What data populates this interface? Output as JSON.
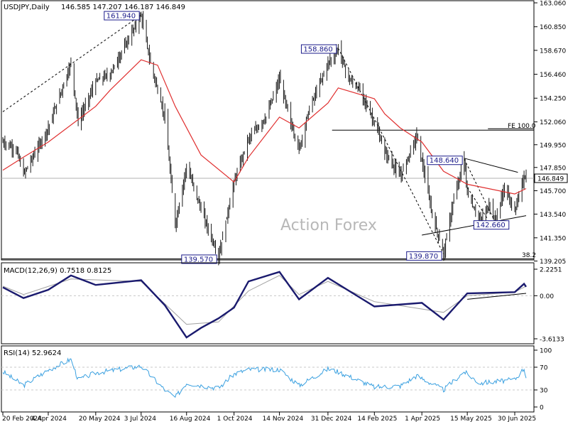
{
  "header": {
    "symbol": "USDJPY,Daily",
    "quote": "146.585 147.207 146.187 146.849"
  },
  "watermark": "Action Forex",
  "colors": {
    "candle": "#1a1a1a",
    "ma": "#e03030",
    "macd": "#1a1a6e",
    "signal": "#a0a0a0",
    "rsi": "#3aa0e0",
    "label_box": "#1a1a8a",
    "grid": "#c8c8c8"
  },
  "chart_data": [
    {
      "type": "candlestick",
      "panel": "price",
      "title": "USDJPY,Daily",
      "ylim": [
        139.5,
        163.06
      ],
      "y_ticks": [
        "163.060",
        "160.850",
        "158.670",
        "156.460",
        "154.250",
        "152.060",
        "149.950",
        "147.850",
        "145.700",
        "143.540",
        "141.350",
        "139.205"
      ],
      "current_price": "146.849",
      "x_labels": [
        "20 Feb 2024",
        "4 Apr 2024",
        "20 May 2024",
        "3 Jul 2024",
        "16 Aug 2024",
        "1 Oct 2024",
        "14 Nov 2024",
        "31 Dec 2024",
        "14 Feb 2025",
        "1 Apr 2025",
        "15 May 2025",
        "30 Jun 2025"
      ],
      "price_path": [
        {
          "x": "20 Feb 2024",
          "y": 150.2
        },
        {
          "x": "4 Mar 2024",
          "y": 149.5
        },
        {
          "x": "11 Mar 2024",
          "y": 147.2
        },
        {
          "x": "4 Apr 2024",
          "y": 151.5
        },
        {
          "x": "26 Apr 2024",
          "y": 157.5
        },
        {
          "x": "3 May 2024",
          "y": 152.0
        },
        {
          "x": "20 May 2024",
          "y": 155.8
        },
        {
          "x": "3 Jun 2024",
          "y": 156.5
        },
        {
          "x": "3 Jul 2024",
          "y": 161.94
        },
        {
          "x": "12 Jul 2024",
          "y": 157.5
        },
        {
          "x": "26 Jul 2024",
          "y": 152.5
        },
        {
          "x": "5 Aug 2024",
          "y": 142.5
        },
        {
          "x": "16 Aug 2024",
          "y": 148.0
        },
        {
          "x": "30 Aug 2024",
          "y": 144.0
        },
        {
          "x": "16 Sep 2024",
          "y": 139.57
        },
        {
          "x": "1 Oct 2024",
          "y": 146.5
        },
        {
          "x": "15 Oct 2024",
          "y": 150.5
        },
        {
          "x": "1 Nov 2024",
          "y": 152.5
        },
        {
          "x": "14 Nov 2024",
          "y": 156.0
        },
        {
          "x": "25 Nov 2024",
          "y": 152.0
        },
        {
          "x": "3 Dec 2024",
          "y": 149.5
        },
        {
          "x": "12 Dec 2024",
          "y": 153.0
        },
        {
          "x": "31 Dec 2024",
          "y": 157.5
        },
        {
          "x": "10 Jan 2025",
          "y": 158.86
        },
        {
          "x": "20 Jan 2025",
          "y": 156.0
        },
        {
          "x": "31 Jan 2025",
          "y": 155.0
        },
        {
          "x": "14 Feb 2025",
          "y": 152.0
        },
        {
          "x": "24 Feb 2025",
          "y": 149.3
        },
        {
          "x": "11 Mar 2025",
          "y": 147.0
        },
        {
          "x": "27 Mar 2025",
          "y": 150.8
        },
        {
          "x": "1 Apr 2025",
          "y": 148.5
        },
        {
          "x": "11 Apr 2025",
          "y": 143.5
        },
        {
          "x": "22 Apr 2025",
          "y": 139.87
        },
        {
          "x": "1 May 2025",
          "y": 144.5
        },
        {
          "x": "12 May 2025",
          "y": 148.64
        },
        {
          "x": "15 May 2025",
          "y": 145.5
        },
        {
          "x": "27 May 2025",
          "y": 142.8
        },
        {
          "x": "6 Jun 2025",
          "y": 144.5
        },
        {
          "x": "11 Jun 2025",
          "y": 142.8
        },
        {
          "x": "20 Jun 2025",
          "y": 146.0
        },
        {
          "x": "30 Jun 2025",
          "y": 143.8
        },
        {
          "x": "9 Jul 2025",
          "y": 147.0
        },
        {
          "x": "11 Jul 2025",
          "y": 146.8
        }
      ],
      "ma_path": [
        {
          "x": "20 Feb 2024",
          "y": 147.6
        },
        {
          "x": "11 Mar 2024",
          "y": 148.8
        },
        {
          "x": "4 Apr 2024",
          "y": 150.2
        },
        {
          "x": "20 May 2024",
          "y": 153.5
        },
        {
          "x": "3 Jun 2024",
          "y": 155.0
        },
        {
          "x": "3 Jul 2024",
          "y": 157.8
        },
        {
          "x": "19 Jul 2024",
          "y": 157.3
        },
        {
          "x": "5 Aug 2024",
          "y": 153.5
        },
        {
          "x": "30 Aug 2024",
          "y": 149.0
        },
        {
          "x": "1 Oct 2024",
          "y": 146.5
        },
        {
          "x": "15 Oct 2024",
          "y": 148.8
        },
        {
          "x": "14 Nov 2024",
          "y": 152.5
        },
        {
          "x": "3 Dec 2024",
          "y": 151.5
        },
        {
          "x": "31 Dec 2024",
          "y": 153.8
        },
        {
          "x": "10 Jan 2025",
          "y": 155.2
        },
        {
          "x": "14 Feb 2025",
          "y": 154.2
        },
        {
          "x": "24 Feb 2025",
          "y": 152.8
        },
        {
          "x": "11 Mar 2025",
          "y": 151.5
        },
        {
          "x": "1 Apr 2025",
          "y": 150.2
        },
        {
          "x": "22 Apr 2025",
          "y": 147.5
        },
        {
          "x": "15 May 2025",
          "y": 146.3
        },
        {
          "x": "30 Jun 2025",
          "y": 145.4
        },
        {
          "x": "11 Jul 2025",
          "y": 145.9
        }
      ],
      "annotations": {
        "high_label": "161.940",
        "low_label_1": "139.570",
        "swing_high_label": "158.860",
        "swing_low_label": "139.870",
        "high_label_2": "148.640",
        "low_label_2": "142.660",
        "fe_label": "FE 100.0",
        "fib_label": "38.2"
      },
      "reference_levels": {
        "fe_100": 151.3,
        "fib_38_2": 139.4
      }
    },
    {
      "type": "line",
      "panel": "macd",
      "title": "MACD(12,26,9) 0.7518 0.8125",
      "ylim": [
        -3.6133,
        2.2251
      ],
      "y_ticks": [
        "2.2251",
        "0.00",
        "-3.6133"
      ],
      "macd_path": [
        {
          "x": "20 Feb 2024",
          "y": 0.7
        },
        {
          "x": "11 Mar 2024",
          "y": -0.2
        },
        {
          "x": "4 Apr 2024",
          "y": 0.5
        },
        {
          "x": "26 Apr 2024",
          "y": 1.7
        },
        {
          "x": "20 May 2024",
          "y": 0.9
        },
        {
          "x": "3 Jul 2024",
          "y": 1.3
        },
        {
          "x": "26 Jul 2024",
          "y": -0.8
        },
        {
          "x": "16 Aug 2024",
          "y": -3.5
        },
        {
          "x": "30 Aug 2024",
          "y": -2.7
        },
        {
          "x": "16 Sep 2024",
          "y": -1.9
        },
        {
          "x": "1 Oct 2024",
          "y": -1.0
        },
        {
          "x": "15 Oct 2024",
          "y": 1.2
        },
        {
          "x": "14 Nov 2024",
          "y": 2.0
        },
        {
          "x": "3 Dec 2024",
          "y": -0.3
        },
        {
          "x": "31 Dec 2024",
          "y": 1.5
        },
        {
          "x": "14 Feb 2025",
          "y": -0.9
        },
        {
          "x": "1 Apr 2025",
          "y": -0.6
        },
        {
          "x": "22 Apr 2025",
          "y": -2.0
        },
        {
          "x": "15 May 2025",
          "y": 0.2
        },
        {
          "x": "30 Jun 2025",
          "y": 0.3
        },
        {
          "x": "9 Jul 2025",
          "y": 1.0
        },
        {
          "x": "11 Jul 2025",
          "y": 0.75
        }
      ],
      "signal_path": [
        {
          "x": "20 Feb 2024",
          "y": 0.8
        },
        {
          "x": "11 Mar 2024",
          "y": 0.1
        },
        {
          "x": "26 Apr 2024",
          "y": 1.4
        },
        {
          "x": "3 Jul 2024",
          "y": 1.2
        },
        {
          "x": "16 Aug 2024",
          "y": -2.4
        },
        {
          "x": "16 Sep 2024",
          "y": -2.2
        },
        {
          "x": "15 Oct 2024",
          "y": 0.4
        },
        {
          "x": "14 Nov 2024",
          "y": 1.7
        },
        {
          "x": "3 Dec 2024",
          "y": 0.1
        },
        {
          "x": "31 Dec 2024",
          "y": 1.2
        },
        {
          "x": "14 Feb 2025",
          "y": -0.5
        },
        {
          "x": "22 Apr 2025",
          "y": -1.4
        },
        {
          "x": "15 May 2025",
          "y": 0.0
        },
        {
          "x": "30 Jun 2025",
          "y": 0.3
        },
        {
          "x": "11 Jul 2025",
          "y": 0.81
        }
      ]
    },
    {
      "type": "line",
      "panel": "rsi",
      "title": "RSI(14) 52.9624",
      "ylim": [
        0,
        100
      ],
      "y_ticks": [
        "100",
        "70",
        "30",
        "0"
      ],
      "levels": [
        70,
        30
      ],
      "rsi_path": [
        {
          "x": "20 Feb 2024",
          "y": 62
        },
        {
          "x": "11 Mar 2024",
          "y": 38
        },
        {
          "x": "4 Apr 2024",
          "y": 65
        },
        {
          "x": "26 Apr 2024",
          "y": 84
        },
        {
          "x": "3 May 2024",
          "y": 48
        },
        {
          "x": "20 May 2024",
          "y": 60
        },
        {
          "x": "3 Jul 2024",
          "y": 72
        },
        {
          "x": "26 Jul 2024",
          "y": 30
        },
        {
          "x": "5 Aug 2024",
          "y": 17
        },
        {
          "x": "16 Aug 2024",
          "y": 42
        },
        {
          "x": "16 Sep 2024",
          "y": 33
        },
        {
          "x": "1 Oct 2024",
          "y": 58
        },
        {
          "x": "15 Oct 2024",
          "y": 66
        },
        {
          "x": "14 Nov 2024",
          "y": 66
        },
        {
          "x": "3 Dec 2024",
          "y": 38
        },
        {
          "x": "31 Dec 2024",
          "y": 67
        },
        {
          "x": "10 Jan 2025",
          "y": 62
        },
        {
          "x": "14 Feb 2025",
          "y": 35
        },
        {
          "x": "11 Mar 2025",
          "y": 37
        },
        {
          "x": "27 Mar 2025",
          "y": 55
        },
        {
          "x": "22 Apr 2025",
          "y": 30
        },
        {
          "x": "12 May 2025",
          "y": 62
        },
        {
          "x": "27 May 2025",
          "y": 42
        },
        {
          "x": "30 Jun 2025",
          "y": 48
        },
        {
          "x": "9 Jul 2025",
          "y": 68
        },
        {
          "x": "11 Jul 2025",
          "y": 53
        }
      ]
    }
  ]
}
